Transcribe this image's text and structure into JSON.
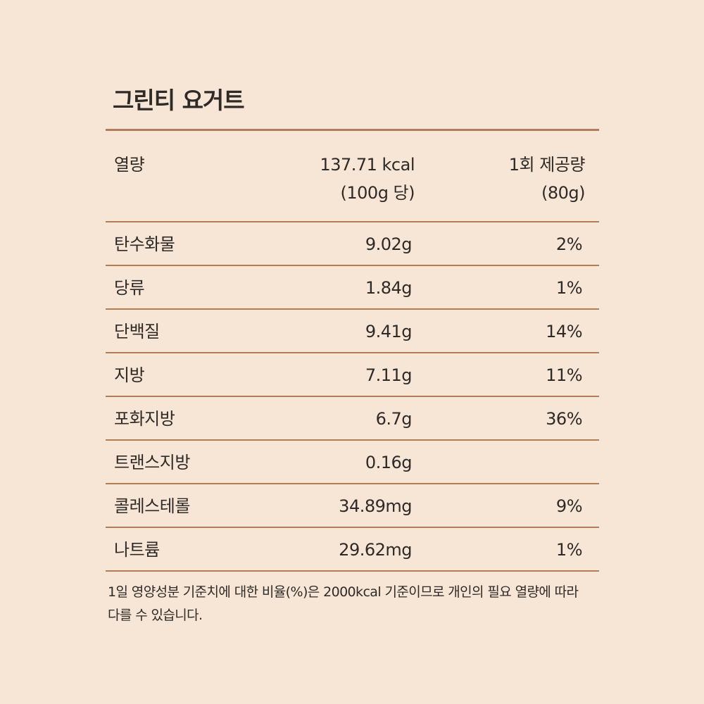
{
  "title": "그린티 요거트",
  "header": {
    "label": "열량",
    "kcal_line1": "137.71 kcal",
    "kcal_line2": "(100g 당)",
    "serving_line1": "1회 제공량",
    "serving_line2": "(80g)"
  },
  "rows": [
    {
      "name": "탄수화물",
      "amount": "9.02g",
      "pct": "2%"
    },
    {
      "name": "당류",
      "amount": "1.84g",
      "pct": "1%"
    },
    {
      "name": "단백질",
      "amount": "9.41g",
      "pct": "14%"
    },
    {
      "name": "지방",
      "amount": "7.11g",
      "pct": "11%"
    },
    {
      "name": "포화지방",
      "amount": "6.7g",
      "pct": "36%"
    },
    {
      "name": "트랜스지방",
      "amount": "0.16g",
      "pct": ""
    },
    {
      "name": "콜레스테롤",
      "amount": "34.89mg",
      "pct": "9%"
    },
    {
      "name": "나트륨",
      "amount": "29.62mg",
      "pct": "1%"
    }
  ],
  "note": {
    "line1": "1일 영양성분 기준치에 대한 비율(%)은 2000kcal 기준이므로 개인의 필요 열량에 따라",
    "line2": "다를 수 있습니다."
  }
}
